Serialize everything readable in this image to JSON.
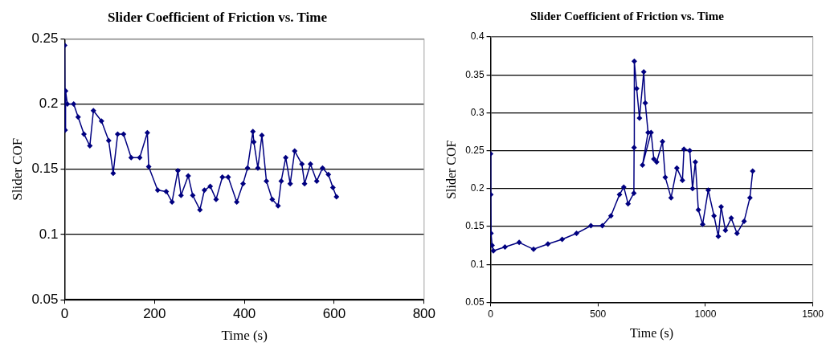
{
  "chart_data": [
    {
      "type": "line",
      "title": "Slider Coefficient of Friction vs. Time",
      "xlabel": "Time (s)",
      "ylabel": "Slider COF",
      "xlim": [
        0,
        800
      ],
      "xticks": [
        0,
        200,
        400,
        600,
        800
      ],
      "ylim": [
        0.05,
        0.25
      ],
      "yticks": [
        0.05,
        0.1,
        0.15,
        0.2,
        0.25
      ],
      "grid": "y",
      "legend": false,
      "marker": "diamond",
      "line_style": "solid",
      "series": [
        {
          "color": "#000080",
          "x": [
            0,
            1,
            2,
            6,
            20,
            30,
            43,
            56,
            64,
            82,
            98,
            108,
            118,
            131,
            148,
            167,
            184,
            187,
            207,
            226,
            239,
            252,
            259,
            275,
            285,
            301,
            311,
            324,
            337,
            351,
            364,
            383,
            397,
            407,
            419,
            421,
            430,
            439,
            449,
            462,
            475,
            482,
            492,
            502,
            512,
            528,
            534,
            547,
            561,
            574,
            587,
            597,
            605
          ],
          "values": [
            0.245,
            0.18,
            0.21,
            0.2,
            0.2,
            0.19,
            0.177,
            0.168,
            0.195,
            0.187,
            0.172,
            0.147,
            0.177,
            0.177,
            0.159,
            0.159,
            0.178,
            0.152,
            0.134,
            0.133,
            0.125,
            0.149,
            0.13,
            0.145,
            0.13,
            0.119,
            0.134,
            0.137,
            0.127,
            0.144,
            0.144,
            0.125,
            0.139,
            0.151,
            0.179,
            0.171,
            0.151,
            0.176,
            0.141,
            0.127,
            0.122,
            0.141,
            0.159,
            0.139,
            0.164,
            0.154,
            0.139,
            0.154,
            0.141,
            0.151,
            0.146,
            0.136,
            0.129
          ]
        }
      ]
    },
    {
      "type": "line",
      "title": "Slider Coefficient of Friction vs. Time",
      "xlabel": "Time (s)",
      "ylabel": "Slider COF",
      "xlim": [
        0,
        1500
      ],
      "xticks": [
        0,
        500,
        1000,
        1500
      ],
      "ylim": [
        0.05,
        0.4
      ],
      "yticks": [
        0.05,
        0.1,
        0.15,
        0.2,
        0.25,
        0.3,
        0.35,
        0.4
      ],
      "grid": "y",
      "legend": false,
      "marker": "diamond",
      "line_style": "solid",
      "series": [
        {
          "color": "#000080",
          "x": [
            0,
            1,
            2,
            7,
            13,
            67,
            133,
            200,
            267,
            333,
            400,
            467,
            520,
            560,
            600,
            620,
            640,
            667,
            668,
            669,
            680,
            693,
            713,
            720,
            733,
            707,
            747,
            760,
            773,
            800,
            813,
            840,
            867,
            893,
            900,
            927,
            940,
            953,
            967,
            987,
            1013,
            1040,
            1060,
            1073,
            1093,
            1120,
            1147,
            1180,
            1207,
            1220
          ],
          "values": [
            0.246,
            0.192,
            0.141,
            0.125,
            0.118,
            0.123,
            0.129,
            0.12,
            0.127,
            0.133,
            0.141,
            0.151,
            0.151,
            0.164,
            0.192,
            0.202,
            0.18,
            0.194,
            0.254,
            0.368,
            0.332,
            0.293,
            0.354,
            0.313,
            0.274,
            0.231,
            0.274,
            0.239,
            0.235,
            0.262,
            0.215,
            0.188,
            0.227,
            0.211,
            0.252,
            0.25,
            0.2,
            0.235,
            0.172,
            0.153,
            0.198,
            0.164,
            0.137,
            0.176,
            0.145,
            0.161,
            0.141,
            0.157,
            0.188,
            0.223
          ]
        }
      ]
    }
  ]
}
